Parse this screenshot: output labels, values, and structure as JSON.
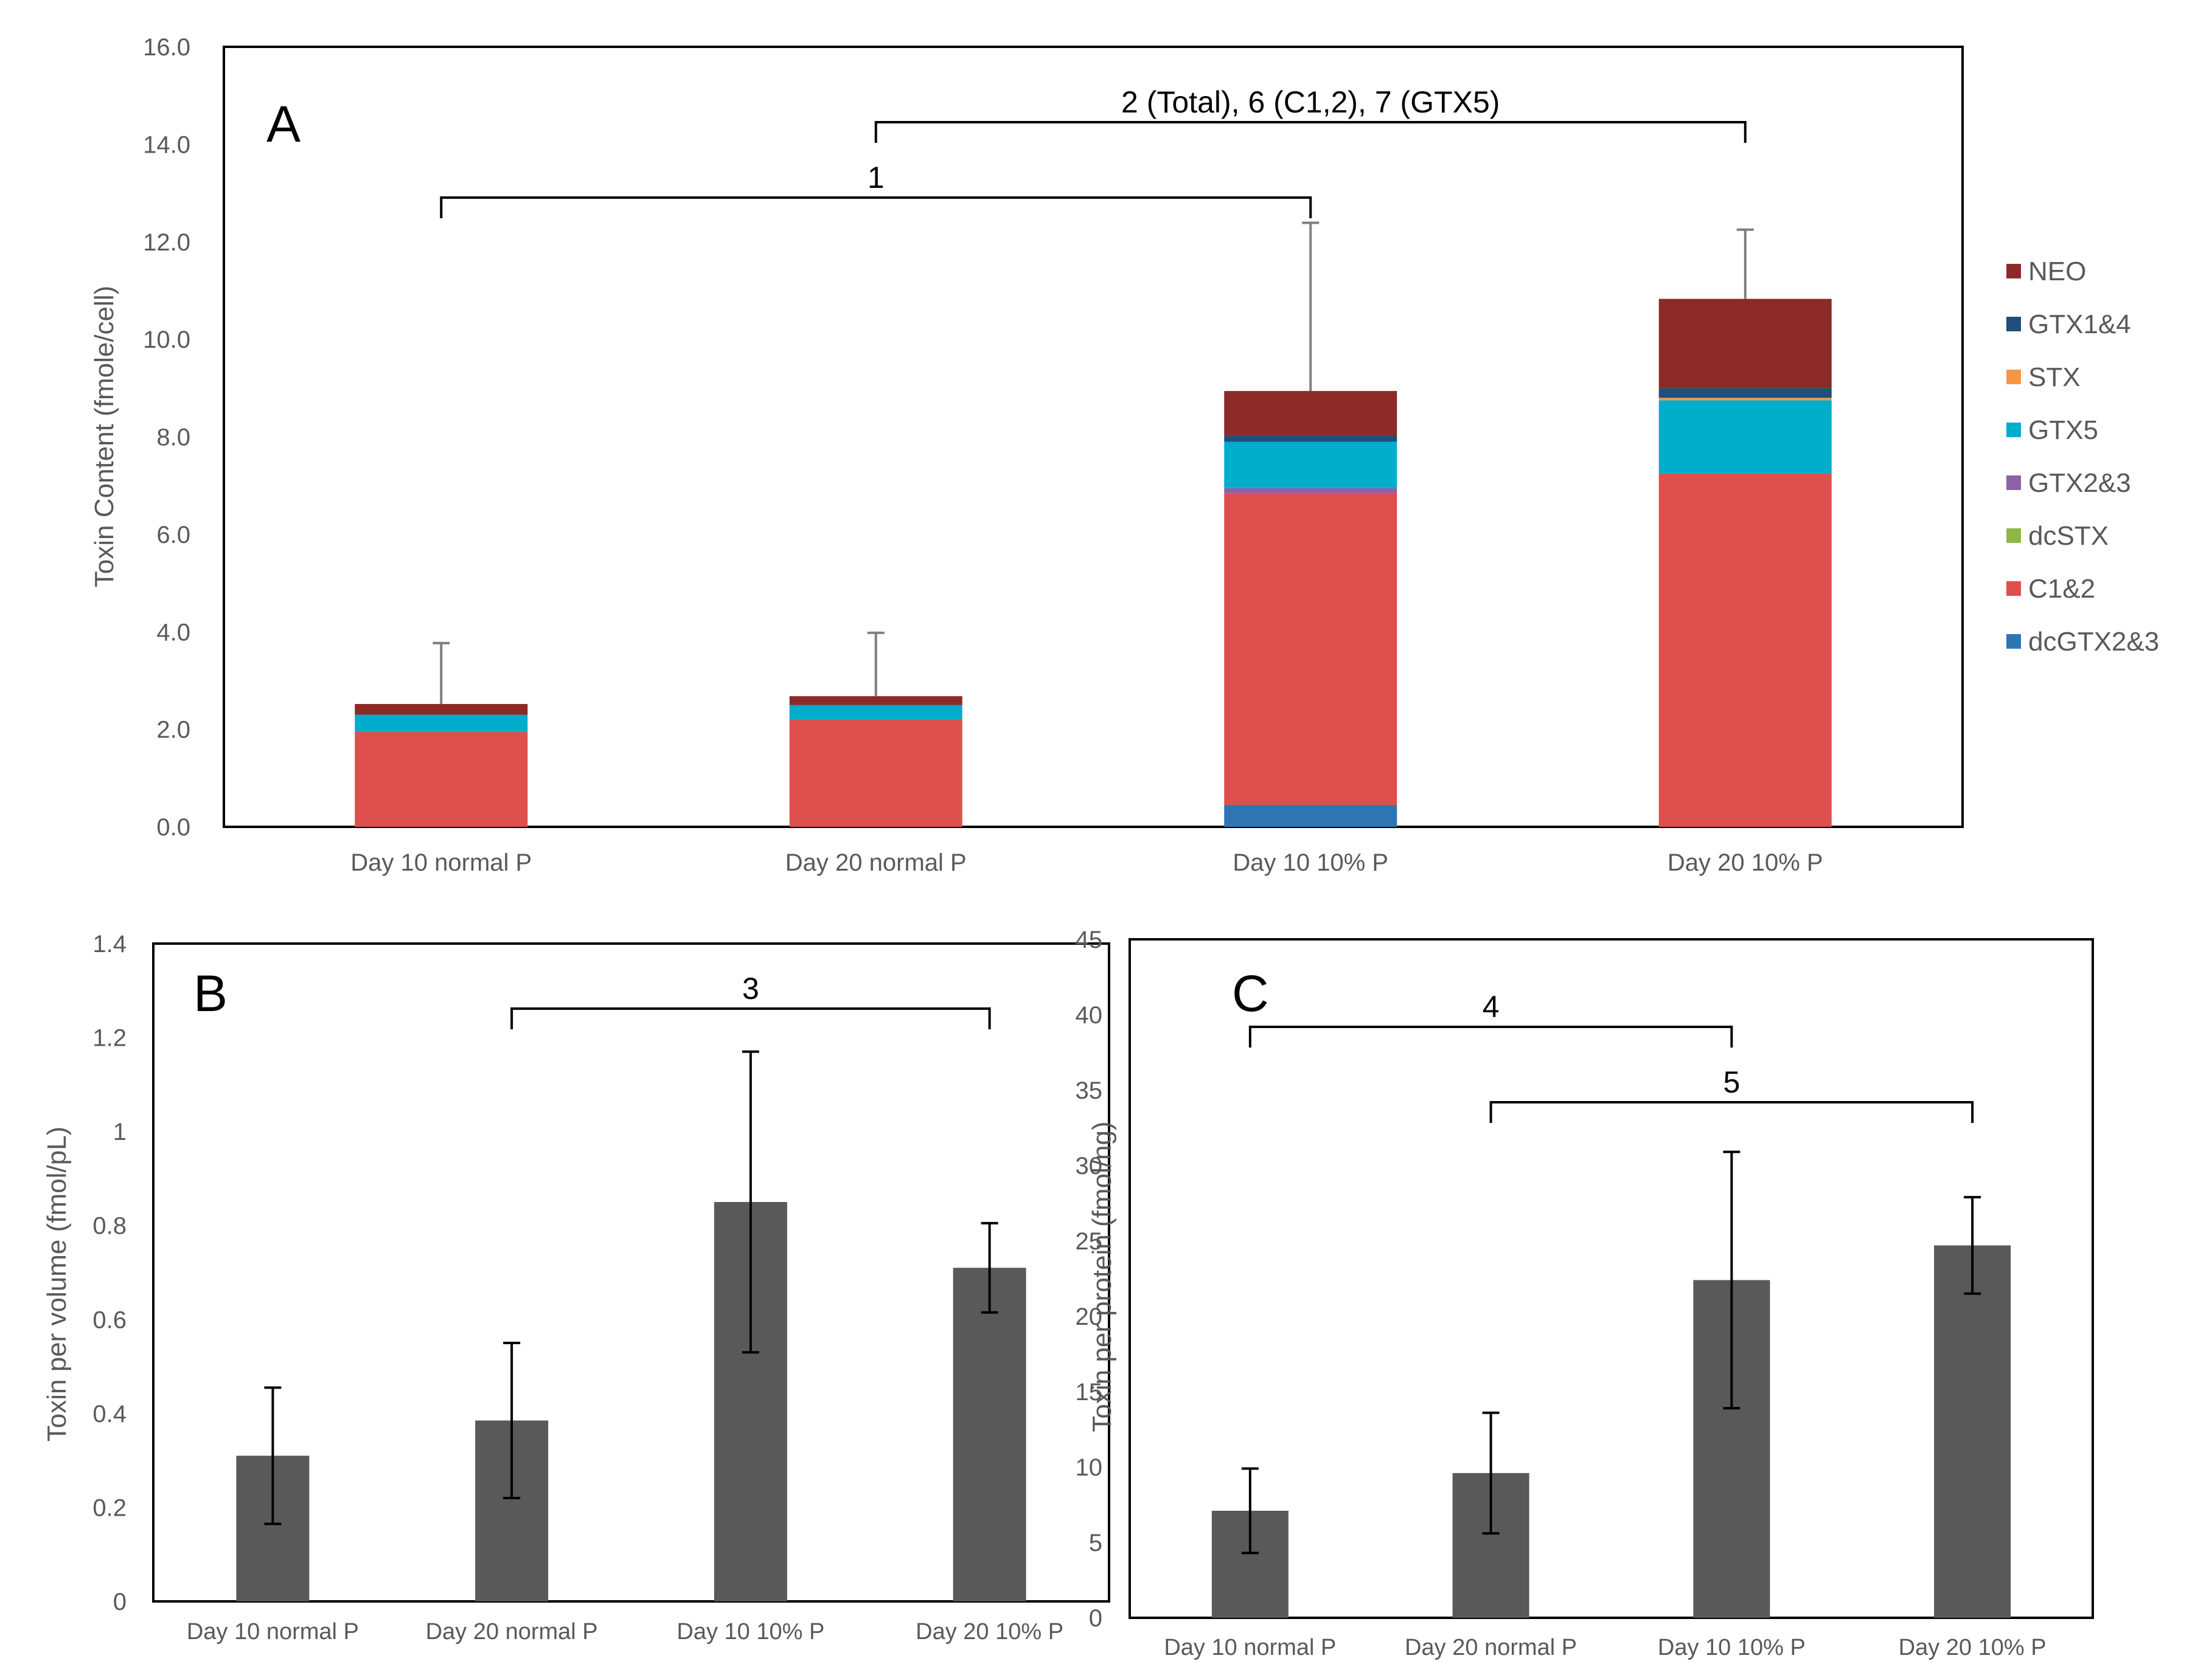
{
  "chart_data": [
    {
      "panel": "A",
      "type": "bar",
      "stacked": true,
      "ylabel": "Toxin Content (fmole/cell)",
      "ylim": [
        0,
        16
      ],
      "yticks": [
        "0.0",
        "2.0",
        "4.0",
        "6.0",
        "8.0",
        "10.0",
        "12.0",
        "14.0",
        "16.0"
      ],
      "categories": [
        "Day 10 normal P",
        "Day 20 normal P",
        "Day 10 10% P",
        "Day 20 10% P"
      ],
      "series": [
        {
          "name": "dcGTX2&3",
          "color": "#2E75B6",
          "values": [
            0,
            0,
            0.45,
            0
          ]
        },
        {
          "name": "C1&2",
          "color": "#DE4F4D",
          "values": [
            1.95,
            2.2,
            6.4,
            7.25
          ]
        },
        {
          "name": "dcSTX",
          "color": "#8DB847",
          "values": [
            0,
            0,
            0,
            0
          ]
        },
        {
          "name": "GTX2&3",
          "color": "#8B62A8",
          "values": [
            0,
            0,
            0.1,
            0
          ]
        },
        {
          "name": "GTX5",
          "color": "#00AECB",
          "values": [
            0.35,
            0.3,
            0.95,
            1.5
          ]
        },
        {
          "name": "STX",
          "color": "#F79646",
          "values": [
            0,
            0,
            0,
            0.05
          ]
        },
        {
          "name": "GTX1&4",
          "color": "#1F4E79",
          "values": [
            0,
            0,
            0.12,
            0.2
          ]
        },
        {
          "name": "NEO",
          "color": "#8B2A26",
          "values": [
            0.22,
            0.18,
            0.92,
            1.83
          ]
        }
      ],
      "totals": [
        2.52,
        2.68,
        8.94,
        10.83
      ],
      "errors": [
        1.25,
        1.3,
        3.45,
        1.42
      ],
      "brackets": [
        {
          "label": "1",
          "from": 0,
          "to": 2
        },
        {
          "label": "2 (Total), 6 (C1,2), 7 (GTX5)",
          "from": 1,
          "to": 3
        }
      ]
    },
    {
      "panel": "B",
      "type": "bar",
      "ylabel": "Toxin per volume (fmol/pL)",
      "ylim": [
        0,
        1.4
      ],
      "yticks": [
        "0",
        "0.2",
        "0.4",
        "0.6",
        "0.8",
        "1",
        "1.2",
        "1.4"
      ],
      "categories": [
        "Day 10 normal P",
        "Day 20 normal P",
        "Day 10 10% P",
        "Day 20 10% P"
      ],
      "values": [
        0.31,
        0.385,
        0.85,
        0.71
      ],
      "errors": [
        0.145,
        0.165,
        0.32,
        0.095
      ],
      "brackets": [
        {
          "label": "3",
          "from": 1,
          "to": 3
        }
      ]
    },
    {
      "panel": "C",
      "type": "bar",
      "ylabel": "Toxin per protein (fmol/ng)",
      "ylim": [
        0,
        45
      ],
      "yticks": [
        "0",
        "5",
        "10",
        "15",
        "20",
        "25",
        "30",
        "35",
        "40",
        "45"
      ],
      "categories": [
        "Day 10 normal P",
        "Day 20 normal P",
        "Day 10 10% P",
        "Day 20 10% P"
      ],
      "values": [
        7.1,
        9.6,
        22.4,
        24.7
      ],
      "errors": [
        2.8,
        4.0,
        8.5,
        3.2
      ],
      "brackets": [
        {
          "label": "4",
          "from": 0,
          "to": 2
        },
        {
          "label": "5",
          "from": 1,
          "to": 3
        }
      ]
    }
  ]
}
